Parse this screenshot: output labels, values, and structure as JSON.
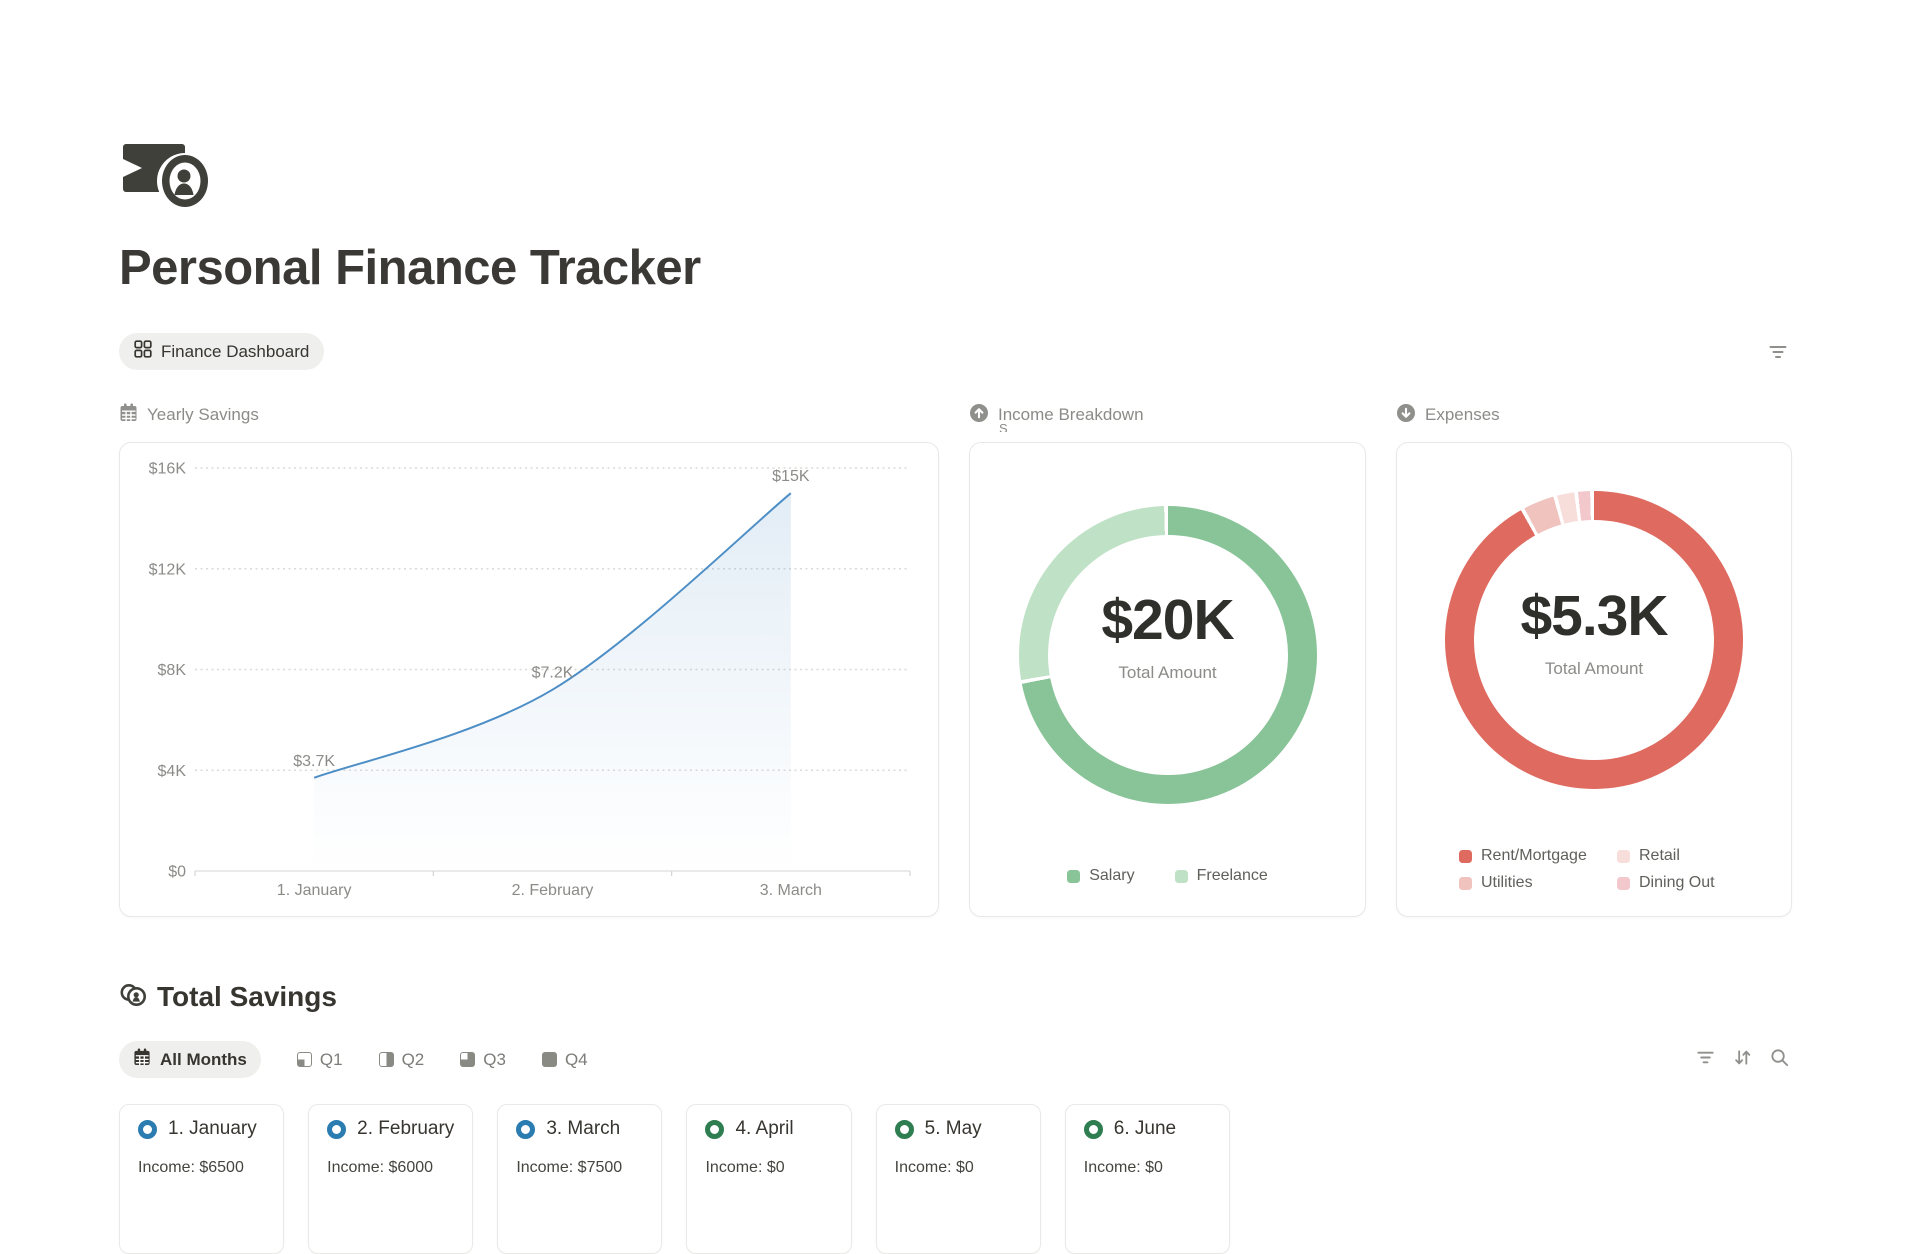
{
  "title": "Personal Finance Tracker",
  "view_tab": {
    "label": "Finance Dashboard",
    "icon": "dashboard-grid-icon"
  },
  "top_right": {
    "icon": "filter-lines-icon"
  },
  "sections": {
    "yearly_savings": {
      "label": "Yearly Savings",
      "icon": "calendar-icon"
    },
    "income_breakdown": {
      "label": "Income Breakdown",
      "icon": "arrow-up-circle-icon",
      "clipped_text": "S"
    },
    "expenses": {
      "label": "Expenses",
      "icon": "arrow-down-circle-icon"
    }
  },
  "chart_data": [
    {
      "type": "area",
      "title": "Yearly Savings",
      "x": [
        "1. January",
        "2. February",
        "3. March"
      ],
      "values": [
        3700,
        7200,
        15000
      ],
      "point_labels": [
        "$3.7K",
        "$7.2K",
        "$15K"
      ],
      "ylim": [
        0,
        16000
      ],
      "yticks": [
        0,
        4000,
        8000,
        12000,
        16000
      ],
      "ytick_labels": [
        "$0",
        "$4K",
        "$8K",
        "$12K",
        "$16K"
      ],
      "grid": "horizontal-dotted",
      "legend": "none",
      "line_color": "#4d8ec6",
      "label_color": "#8b8b88"
    },
    {
      "type": "pie",
      "style": "donut",
      "title": "Income Breakdown",
      "center_value": "$20K",
      "center_label": "Total Amount",
      "legend_position": "bottom",
      "segments": [
        {
          "label": "Salary",
          "value": 14500,
          "color": "#89c498"
        },
        {
          "label": "Freelance",
          "value": 5500,
          "color": "#bfe1c6"
        }
      ]
    },
    {
      "type": "pie",
      "style": "donut",
      "title": "Expenses",
      "center_value": "$5.3K",
      "center_label": "Total Amount",
      "legend_position": "bottom",
      "segments": [
        {
          "label": "Rent/Mortgage",
          "value": 4950,
          "color": "#df6a5f"
        },
        {
          "label": "Utilities",
          "value": 180,
          "color": "#f1c3be"
        },
        {
          "label": "Retail",
          "value": 100,
          "color": "#f8dedb"
        },
        {
          "label": "Dining Out",
          "value": 70,
          "color": "#f3c8cc"
        }
      ]
    }
  ],
  "total_savings": {
    "heading": "Total Savings",
    "icon": "coins-icon",
    "filters": {
      "active": "All Months",
      "active_icon": "calendar-icon",
      "quarters": [
        "Q1",
        "Q2",
        "Q3",
        "Q4"
      ]
    },
    "toolbar_icons": [
      "filter-lines-icon",
      "sort-icon",
      "search-icon"
    ]
  },
  "months": [
    {
      "title": "1. January",
      "income": "Income: $6500",
      "icon_color": "#2b7cb1"
    },
    {
      "title": "2. February",
      "income": "Income: $6000",
      "icon_color": "#2b7cb1"
    },
    {
      "title": "3. March",
      "income": "Income: $7500",
      "icon_color": "#2b7cb1"
    },
    {
      "title": "4. April",
      "income": "Income: $0",
      "icon_color": "#2f7e51"
    },
    {
      "title": "5. May",
      "income": "Income: $0",
      "icon_color": "#2f7e51"
    },
    {
      "title": "6. June",
      "income": "Income: $0",
      "icon_color": "#2f7e51"
    }
  ]
}
